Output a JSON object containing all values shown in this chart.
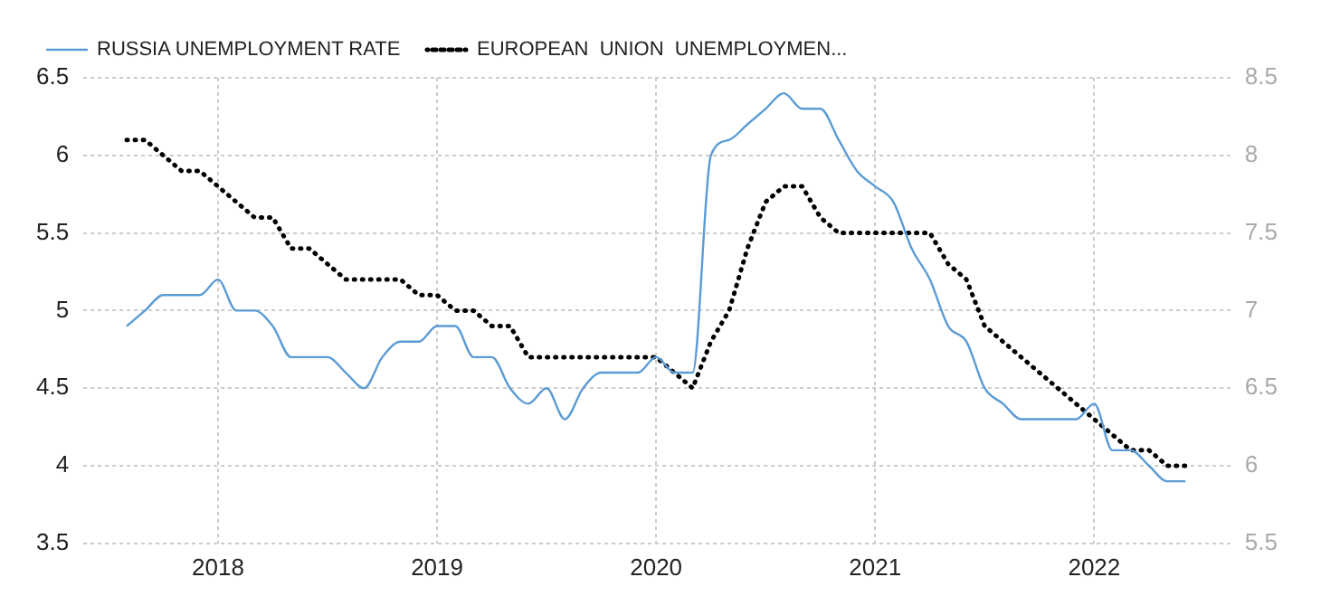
{
  "chart_data": {
    "type": "line",
    "x": [
      "2017-08",
      "2017-09",
      "2017-10",
      "2017-11",
      "2017-12",
      "2018-01",
      "2018-02",
      "2018-03",
      "2018-04",
      "2018-05",
      "2018-06",
      "2018-07",
      "2018-08",
      "2018-09",
      "2018-10",
      "2018-11",
      "2018-12",
      "2019-01",
      "2019-02",
      "2019-03",
      "2019-04",
      "2019-05",
      "2019-06",
      "2019-07",
      "2019-08",
      "2019-09",
      "2019-10",
      "2019-11",
      "2019-12",
      "2020-01",
      "2020-02",
      "2020-03",
      "2020-04",
      "2020-05",
      "2020-06",
      "2020-07",
      "2020-08",
      "2020-09",
      "2020-10",
      "2020-11",
      "2020-12",
      "2021-01",
      "2021-02",
      "2021-03",
      "2021-04",
      "2021-05",
      "2021-06",
      "2021-07",
      "2021-08",
      "2021-09",
      "2021-10",
      "2021-11",
      "2021-12",
      "2022-01",
      "2022-02",
      "2022-03",
      "2022-04",
      "2022-05",
      "2022-06"
    ],
    "series": [
      {
        "name": "RUSSIA UNEMPLOYMENT RATE",
        "color": "#5b9bd5",
        "line_style": "solid",
        "values": [
          4.9,
          5.0,
          5.1,
          5.1,
          5.1,
          5.2,
          5.0,
          5.0,
          4.9,
          4.7,
          4.7,
          4.7,
          4.6,
          4.5,
          4.7,
          4.8,
          4.8,
          4.9,
          4.9,
          4.7,
          4.7,
          4.5,
          4.4,
          4.5,
          4.3,
          4.5,
          4.6,
          4.6,
          4.6,
          4.7,
          4.6,
          4.6,
          6.0,
          6.1,
          6.2,
          6.3,
          6.4,
          6.3,
          6.3,
          6.1,
          5.9,
          5.8,
          5.7,
          5.4,
          5.2,
          4.9,
          4.8,
          4.5,
          4.4,
          4.3,
          4.3,
          4.3,
          4.3,
          4.4,
          4.1,
          4.1,
          4.0,
          3.9,
          3.9
        ]
      },
      {
        "name": "EUROPEAN  UNION  UNEMPLOYMEN...",
        "color": "#000000",
        "line_style": "dotted",
        "axis": "y2",
        "values": [
          8.1,
          8.1,
          8.0,
          7.9,
          7.9,
          7.8,
          7.7,
          7.6,
          7.6,
          7.4,
          7.4,
          7.3,
          7.2,
          7.2,
          7.2,
          7.2,
          7.1,
          7.1,
          7.0,
          7.0,
          6.9,
          6.9,
          6.7,
          6.7,
          6.7,
          6.7,
          6.7,
          6.7,
          6.7,
          6.7,
          6.6,
          6.5,
          6.8,
          7.0,
          7.4,
          7.7,
          7.8,
          7.8,
          7.6,
          7.5,
          7.5,
          7.5,
          7.5,
          7.5,
          7.5,
          7.3,
          7.2,
          6.9,
          6.8,
          6.7,
          6.6,
          6.5,
          6.4,
          6.3,
          6.2,
          6.1,
          6.1,
          6.0,
          6.0
        ]
      }
    ],
    "xlim": [
      "2017-05-20",
      "2022-08-15"
    ],
    "xticks": [
      {
        "value": "2018-01-01",
        "label": "2018"
      },
      {
        "value": "2019-01-01",
        "label": "2019"
      },
      {
        "value": "2020-01-01",
        "label": "2020"
      },
      {
        "value": "2021-01-01",
        "label": "2021"
      },
      {
        "value": "2022-01-01",
        "label": "2022"
      }
    ],
    "ylim": [
      3.5,
      6.5
    ],
    "yticks": [
      3.5,
      4,
      4.5,
      5,
      5.5,
      6,
      6.5
    ],
    "y2lim": [
      5.5,
      8.5
    ],
    "y2ticks": [
      5.5,
      6,
      6.5,
      7,
      7.5,
      8,
      8.5
    ],
    "grid": true,
    "legend": "top left",
    "marker": "none"
  }
}
